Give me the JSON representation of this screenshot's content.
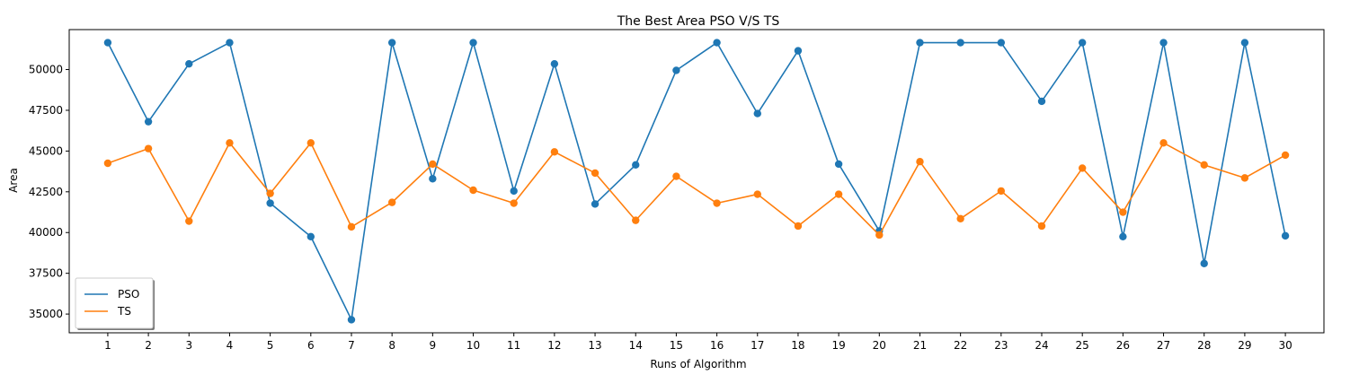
{
  "chart_data": {
    "type": "line",
    "title": "The Best Area PSO V/S TS",
    "xlabel": "Runs of Algorithm",
    "ylabel": "Area",
    "x": [
      1,
      2,
      3,
      4,
      5,
      6,
      7,
      8,
      9,
      10,
      11,
      12,
      13,
      14,
      15,
      16,
      17,
      18,
      19,
      20,
      21,
      22,
      23,
      24,
      25,
      26,
      27,
      28,
      29,
      30
    ],
    "x_ticks": [
      "1",
      "2",
      "3",
      "4",
      "5",
      "6",
      "7",
      "8",
      "9",
      "10",
      "11",
      "12",
      "13",
      "14",
      "15",
      "16",
      "17",
      "18",
      "19",
      "20",
      "21",
      "22",
      "23",
      "24",
      "25",
      "26",
      "27",
      "28",
      "29",
      "30"
    ],
    "y_ticks": [
      35000,
      37500,
      40000,
      42500,
      45000,
      47500,
      50000
    ],
    "y_tick_labels": [
      "35000",
      "37500",
      "40000",
      "42500",
      "45000",
      "47500",
      "50000"
    ],
    "xlim": [
      0.05,
      30.95
    ],
    "ylim": [
      33850,
      52450
    ],
    "grid": false,
    "legend_position": "lower-left",
    "series": [
      {
        "name": "PSO",
        "color": "#1f77b4",
        "marker": "circle",
        "values": [
          51650,
          46800,
          50350,
          51650,
          41800,
          39750,
          34650,
          51650,
          43300,
          51650,
          42550,
          50350,
          41750,
          44150,
          49950,
          51650,
          47300,
          51150,
          44200,
          40100,
          51650,
          51650,
          51650,
          48050,
          51650,
          39750,
          51650,
          38100,
          51650,
          39800
        ]
      },
      {
        "name": "TS",
        "color": "#ff7f0e",
        "marker": "circle",
        "values": [
          44250,
          45150,
          40700,
          45500,
          42400,
          45500,
          40350,
          41850,
          44200,
          42600,
          41800,
          44950,
          43650,
          40750,
          43450,
          41800,
          42350,
          40400,
          42350,
          39850,
          44350,
          40850,
          42550,
          40400,
          43950,
          41250,
          45500,
          44150,
          43350,
          44750
        ]
      }
    ]
  }
}
